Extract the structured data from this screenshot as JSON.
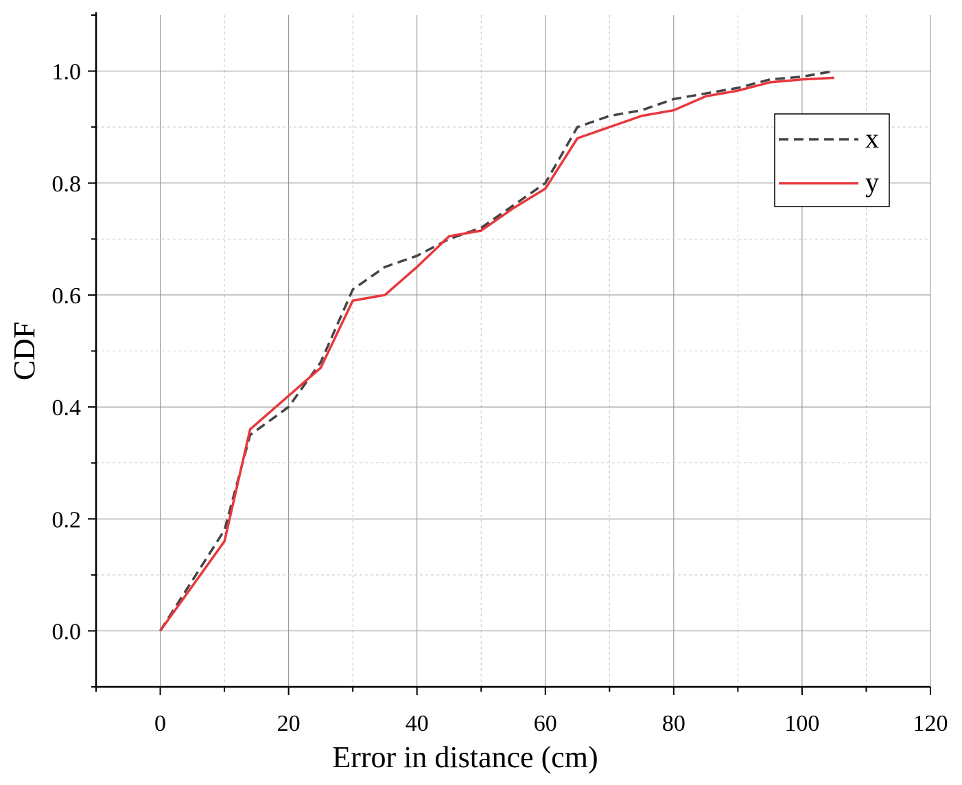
{
  "chart_data": {
    "type": "line",
    "title": "",
    "xlabel": "Error in distance (cm)",
    "ylabel": "CDF",
    "xlim": [
      -10,
      120
    ],
    "ylim": [
      -0.1,
      1.1
    ],
    "x_ticks": [
      0,
      20,
      40,
      60,
      80,
      100,
      120
    ],
    "x_tick_labels": [
      "0",
      "20",
      "40",
      "60",
      "80",
      "100",
      "120"
    ],
    "x_minor_ticks": [
      -10,
      10,
      30,
      50,
      70,
      90,
      110
    ],
    "y_ticks": [
      0.0,
      0.2,
      0.4,
      0.6,
      0.8,
      1.0
    ],
    "y_tick_labels": [
      "0.0",
      "0.2",
      "0.4",
      "0.6",
      "0.8",
      "1.0"
    ],
    "y_minor_ticks": [
      -0.1,
      0.1,
      0.3,
      0.5,
      0.7,
      0.9,
      1.1
    ],
    "grid": true,
    "legend_position": "top-right",
    "series": [
      {
        "name": "x",
        "style": "dashed",
        "color": "#444444",
        "x": [
          0,
          10,
          14,
          20,
          25,
          30,
          35,
          40,
          45,
          50,
          55,
          60,
          65,
          70,
          75,
          80,
          85,
          90,
          95,
          100,
          105
        ],
        "y": [
          0.0,
          0.18,
          0.35,
          0.4,
          0.48,
          0.61,
          0.65,
          0.67,
          0.7,
          0.72,
          0.76,
          0.8,
          0.9,
          0.92,
          0.93,
          0.95,
          0.96,
          0.97,
          0.985,
          0.99,
          1.0
        ]
      },
      {
        "name": "y",
        "style": "solid",
        "color": "#e8373c",
        "x": [
          0,
          10,
          14,
          20,
          25,
          30,
          35,
          40,
          45,
          50,
          55,
          60,
          65,
          70,
          75,
          80,
          85,
          90,
          95,
          100,
          105
        ],
        "y": [
          0.0,
          0.16,
          0.36,
          0.42,
          0.47,
          0.59,
          0.6,
          0.65,
          0.705,
          0.715,
          0.755,
          0.79,
          0.88,
          0.9,
          0.92,
          0.93,
          0.955,
          0.965,
          0.98,
          0.985,
          0.988
        ]
      }
    ]
  }
}
